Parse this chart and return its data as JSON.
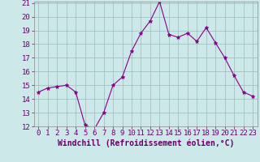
{
  "x": [
    0,
    1,
    2,
    3,
    4,
    5,
    6,
    7,
    8,
    9,
    10,
    11,
    12,
    13,
    14,
    15,
    16,
    17,
    18,
    19,
    20,
    21,
    22,
    23
  ],
  "y": [
    14.5,
    14.8,
    14.9,
    15.0,
    14.5,
    12.1,
    11.8,
    13.0,
    15.0,
    15.6,
    17.5,
    18.8,
    19.7,
    21.1,
    18.7,
    18.5,
    18.8,
    18.2,
    19.2,
    18.1,
    17.0,
    15.7,
    14.5,
    14.2
  ],
  "ylim": [
    12,
    21
  ],
  "xlim": [
    -0.5,
    23.5
  ],
  "yticks": [
    12,
    13,
    14,
    15,
    16,
    17,
    18,
    19,
    20,
    21
  ],
  "xticks": [
    0,
    1,
    2,
    3,
    4,
    5,
    6,
    7,
    8,
    9,
    10,
    11,
    12,
    13,
    14,
    15,
    16,
    17,
    18,
    19,
    20,
    21,
    22,
    23
  ],
  "xlabel": "Windchill (Refroidissement éolien,°C)",
  "line_color": "#880088",
  "marker": "*",
  "marker_size": 3.5,
  "bg_color": "#cce8e8",
  "grid_color": "#99bbbb",
  "xlabel_fontsize": 7,
  "tick_fontsize": 6.5,
  "tick_color": "#660066",
  "spine_color": "#888888"
}
